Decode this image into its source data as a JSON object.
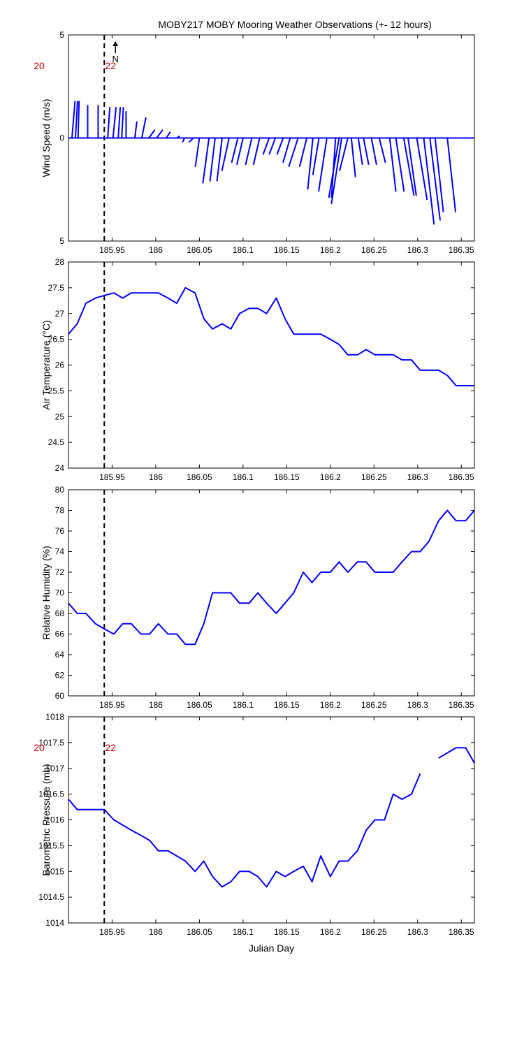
{
  "figure": {
    "title": "MOBY217 MOBY Mooring Weather Observations (+- 12 hours)"
  },
  "colors": {
    "series": "#0000ff",
    "marker": "#000000",
    "hour_label": "#c00000",
    "axes": "#000000"
  },
  "chart_data": [
    {
      "type": "line",
      "title": "MOBY217 MOBY Mooring Weather Observations (+- 12 hours)",
      "ylabel": "Wind Speed (m/s)",
      "ytick_labels": [
        "5",
        "0",
        "5"
      ],
      "ylim": [
        -5,
        5
      ],
      "xlim": [
        185.9,
        186.365
      ],
      "xticks": [
        185.95,
        186,
        186.05,
        186.1,
        186.15,
        186.2,
        186.25,
        186.3,
        186.35
      ],
      "xtick_labels": [
        "185.95",
        "186",
        "186.05",
        "186.1",
        "186.15",
        "186.2",
        "186.25",
        "186.3",
        "186.35"
      ],
      "north_label": "N",
      "hour_labels": [
        {
          "text": "20",
          "x": 185.9
        },
        {
          "text": "22",
          "x": 185.941
        }
      ],
      "vline_x": 185.941,
      "series": [
        {
          "x": [
            185.904,
            185.908,
            185.911,
            185.922,
            185.934,
            185.945,
            185.951,
            185.957,
            185.961,
            185.966,
            185.976,
            185.984,
            185.992,
            186.001,
            186.012,
            186.024,
            186.033,
            186.043,
            186.05,
            186.061,
            186.068,
            186.076,
            186.084,
            186.094,
            186.1,
            186.11,
            186.119,
            186.13,
            186.137,
            186.146,
            186.154,
            186.163,
            186.173,
            186.18,
            186.187,
            186.196,
            186.206,
            186.21,
            186.213,
            186.22,
            186.224,
            186.232,
            186.238,
            186.247,
            186.256,
            186.268,
            186.275,
            186.284,
            186.289,
            186.299,
            186.307,
            186.314,
            186.32,
            186.334
          ],
          "u": [
            0.15,
            0.1,
            0.05,
            0.0,
            0.0,
            0.1,
            0.15,
            0.1,
            0.08,
            0.0,
            0.1,
            0.2,
            0.3,
            0.3,
            0.2,
            0.15,
            -0.1,
            -0.2,
            -0.2,
            -0.3,
            -0.25,
            -0.25,
            -0.35,
            -0.3,
            -0.3,
            -0.3,
            -0.3,
            -0.3,
            -0.3,
            -0.3,
            -0.35,
            -0.45,
            -0.35,
            -0.25,
            -0.3,
            -0.4,
            -0.2,
            -0.5,
            -0.5,
            -0.4,
            0.2,
            0.2,
            0.25,
            0.25,
            0.3,
            0.3,
            0.4,
            0.5,
            0.4,
            0.5,
            0.5,
            0.5,
            0.4,
            0.4
          ],
          "v": [
            1.8,
            1.8,
            1.8,
            1.6,
            1.6,
            1.5,
            1.5,
            1.5,
            1.5,
            1.3,
            0.8,
            1.0,
            0.4,
            0.4,
            0.3,
            0.1,
            -0.2,
            -0.2,
            -1.4,
            -2.2,
            -2.1,
            -2.1,
            -1.6,
            -1.2,
            -1.3,
            -1.3,
            -1.3,
            -0.8,
            -0.8,
            -0.8,
            -1.2,
            -1.4,
            -1.4,
            -2.5,
            -1.8,
            -2.6,
            -2.9,
            -2.9,
            -3.2,
            -1.6,
            -1.9,
            -1.3,
            -1.3,
            -1.3,
            -1.2,
            -2.6,
            -2.6,
            -2.8,
            -2.8,
            -3.0,
            -4.2,
            -4.0,
            -3.6,
            -3.6
          ]
        }
      ]
    },
    {
      "type": "line",
      "ylabel": "Air Temperature (°C)",
      "ylim": [
        24,
        28
      ],
      "yticks": [
        24,
        24.5,
        25,
        25.5,
        26,
        26.5,
        27,
        27.5,
        28
      ],
      "ytick_labels": [
        "24",
        "24.5",
        "25",
        "25.5",
        "26",
        "26.5",
        "27",
        "27.5",
        "28"
      ],
      "xlim": [
        185.9,
        186.365
      ],
      "xticks": [
        185.95,
        186,
        186.05,
        186.1,
        186.15,
        186.2,
        186.25,
        186.3,
        186.35
      ],
      "xtick_labels": [
        "185.95",
        "186",
        "186.05",
        "186.1",
        "186.15",
        "186.2",
        "186.25",
        "186.3",
        "186.35"
      ],
      "vline_x": 185.941,
      "series": [
        {
          "segments": [
            [
              [
                185.9,
                26.6
              ],
              [
                185.91,
                26.8
              ],
              [
                185.92,
                27.2
              ],
              [
                185.931,
                27.3
              ],
              [
                185.941,
                27.35
              ],
              [
                185.952,
                27.4
              ],
              [
                185.962,
                27.3
              ],
              [
                185.972,
                27.4
              ],
              [
                185.983,
                27.4
              ],
              [
                185.993,
                27.4
              ],
              [
                186.003,
                27.4
              ],
              [
                186.014,
                27.3
              ],
              [
                186.024,
                27.2
              ],
              [
                186.034,
                27.5
              ],
              [
                186.045,
                27.4
              ],
              [
                186.055,
                26.9
              ],
              [
                186.065,
                26.7
              ],
              [
                186.076,
                26.8
              ],
              [
                186.086,
                26.7
              ],
              [
                186.096,
                27.0
              ],
              [
                186.107,
                27.1
              ],
              [
                186.117,
                27.1
              ],
              [
                186.127,
                27.0
              ],
              [
                186.138,
                27.3
              ],
              [
                186.148,
                26.9
              ],
              [
                186.158,
                26.6
              ],
              [
                186.169,
                26.6
              ],
              [
                186.179,
                26.6
              ],
              [
                186.189,
                26.6
              ],
              [
                186.2,
                26.5
              ],
              [
                186.21,
                26.4
              ],
              [
                186.22,
                26.2
              ],
              [
                186.231,
                26.2
              ],
              [
                186.241,
                26.3
              ],
              [
                186.251,
                26.2
              ],
              [
                186.262,
                26.2
              ],
              [
                186.272,
                26.2
              ],
              [
                186.282,
                26.1
              ],
              [
                186.293,
                26.1
              ],
              [
                186.303,
                25.9
              ],
              [
                186.313,
                25.9
              ],
              [
                186.324,
                25.9
              ],
              [
                186.334,
                25.8
              ],
              [
                186.344,
                25.6
              ],
              [
                186.355,
                25.6
              ],
              [
                186.365,
                25.6
              ]
            ]
          ]
        }
      ]
    },
    {
      "type": "line",
      "ylabel": "Relative Humidity (%)",
      "ylim": [
        60,
        80
      ],
      "yticks": [
        60,
        62,
        64,
        66,
        68,
        70,
        72,
        74,
        76,
        78,
        80
      ],
      "ytick_labels": [
        "60",
        "62",
        "64",
        "66",
        "68",
        "70",
        "72",
        "74",
        "76",
        "78",
        "80"
      ],
      "xlim": [
        185.9,
        186.365
      ],
      "xticks": [
        185.95,
        186,
        186.05,
        186.1,
        186.15,
        186.2,
        186.25,
        186.3,
        186.35
      ],
      "xtick_labels": [
        "185.95",
        "186",
        "186.05",
        "186.1",
        "186.15",
        "186.2",
        "186.25",
        "186.3",
        "186.35"
      ],
      "vline_x": 185.941,
      "series": [
        {
          "segments": [
            [
              [
                185.9,
                69
              ],
              [
                185.91,
                68
              ],
              [
                185.92,
                68
              ],
              [
                185.931,
                67
              ],
              [
                185.941,
                66.5
              ],
              [
                185.952,
                66
              ],
              [
                185.962,
                67
              ],
              [
                185.972,
                67
              ],
              [
                185.983,
                66
              ],
              [
                185.993,
                66
              ],
              [
                186.003,
                67
              ],
              [
                186.014,
                66
              ],
              [
                186.024,
                66
              ],
              [
                186.034,
                65
              ],
              [
                186.045,
                65
              ],
              [
                186.055,
                67
              ],
              [
                186.065,
                70
              ],
              [
                186.076,
                70
              ],
              [
                186.086,
                70
              ],
              [
                186.096,
                69
              ],
              [
                186.107,
                69
              ],
              [
                186.117,
                70
              ],
              [
                186.127,
                69
              ],
              [
                186.138,
                68
              ],
              [
                186.148,
                69
              ],
              [
                186.158,
                70
              ],
              [
                186.169,
                72
              ],
              [
                186.179,
                71
              ],
              [
                186.189,
                72
              ],
              [
                186.2,
                72
              ],
              [
                186.21,
                73
              ],
              [
                186.22,
                72
              ],
              [
                186.231,
                73
              ],
              [
                186.241,
                73
              ],
              [
                186.251,
                72
              ],
              [
                186.262,
                72
              ],
              [
                186.272,
                72
              ],
              [
                186.282,
                73
              ],
              [
                186.293,
                74
              ],
              [
                186.303,
                74
              ],
              [
                186.313,
                75
              ],
              [
                186.324,
                77
              ],
              [
                186.334,
                78
              ],
              [
                186.344,
                77
              ],
              [
                186.355,
                77
              ],
              [
                186.365,
                78
              ]
            ]
          ]
        }
      ]
    },
    {
      "type": "line",
      "ylabel": "Barometric Pressure (mb)",
      "xlabel": "Julian Day",
      "ylim": [
        1014,
        1018
      ],
      "yticks": [
        1014,
        1014.5,
        1015,
        1015.5,
        1016,
        1016.5,
        1017,
        1017.5,
        1018
      ],
      "ytick_labels": [
        "1014",
        "1014.5",
        "1015",
        "1015.5",
        "1016",
        "1016.5",
        "1017",
        "1017.5",
        "1018"
      ],
      "xlim": [
        185.9,
        186.365
      ],
      "xticks": [
        185.95,
        186,
        186.05,
        186.1,
        186.15,
        186.2,
        186.25,
        186.3,
        186.35
      ],
      "xtick_labels": [
        "185.95",
        "186",
        "186.05",
        "186.1",
        "186.15",
        "186.2",
        "186.25",
        "186.3",
        "186.35"
      ],
      "hour_labels": [
        {
          "text": "20",
          "x": 185.9
        },
        {
          "text": "22",
          "x": 185.941
        }
      ],
      "vline_x": 185.941,
      "series": [
        {
          "segments": [
            [
              [
                185.9,
                1016.4
              ],
              [
                185.91,
                1016.2
              ],
              [
                185.92,
                1016.2
              ],
              [
                185.931,
                1016.2
              ],
              [
                185.941,
                1016.2
              ],
              [
                185.952,
                1016.0
              ],
              [
                185.962,
                1015.9
              ],
              [
                185.972,
                1015.8
              ],
              [
                185.983,
                1015.7
              ],
              [
                185.993,
                1015.6
              ],
              [
                186.003,
                1015.4
              ],
              [
                186.014,
                1015.4
              ],
              [
                186.024,
                1015.3
              ],
              [
                186.034,
                1015.2
              ],
              [
                186.045,
                1015.0
              ],
              [
                186.055,
                1015.2
              ],
              [
                186.065,
                1014.9
              ],
              [
                186.076,
                1014.7
              ],
              [
                186.086,
                1014.8
              ],
              [
                186.096,
                1015.0
              ],
              [
                186.107,
                1015.0
              ],
              [
                186.117,
                1014.9
              ],
              [
                186.127,
                1014.7
              ],
              [
                186.138,
                1015.0
              ],
              [
                186.148,
                1014.9
              ],
              [
                186.158,
                1015.0
              ],
              [
                186.169,
                1015.1
              ],
              [
                186.179,
                1014.8
              ],
              [
                186.189,
                1015.3
              ],
              [
                186.2,
                1014.9
              ],
              [
                186.21,
                1015.2
              ],
              [
                186.22,
                1015.2
              ],
              [
                186.231,
                1015.4
              ],
              [
                186.241,
                1015.8
              ],
              [
                186.251,
                1016.0
              ],
              [
                186.262,
                1016.0
              ],
              [
                186.272,
                1016.5
              ],
              [
                186.282,
                1016.4
              ],
              [
                186.293,
                1016.5
              ],
              [
                186.303,
                1016.9
              ]
            ],
            [
              [
                186.324,
                1017.2
              ],
              [
                186.334,
                1017.3
              ],
              [
                186.344,
                1017.4
              ],
              [
                186.355,
                1017.4
              ],
              [
                186.365,
                1017.1
              ]
            ]
          ]
        }
      ]
    }
  ]
}
